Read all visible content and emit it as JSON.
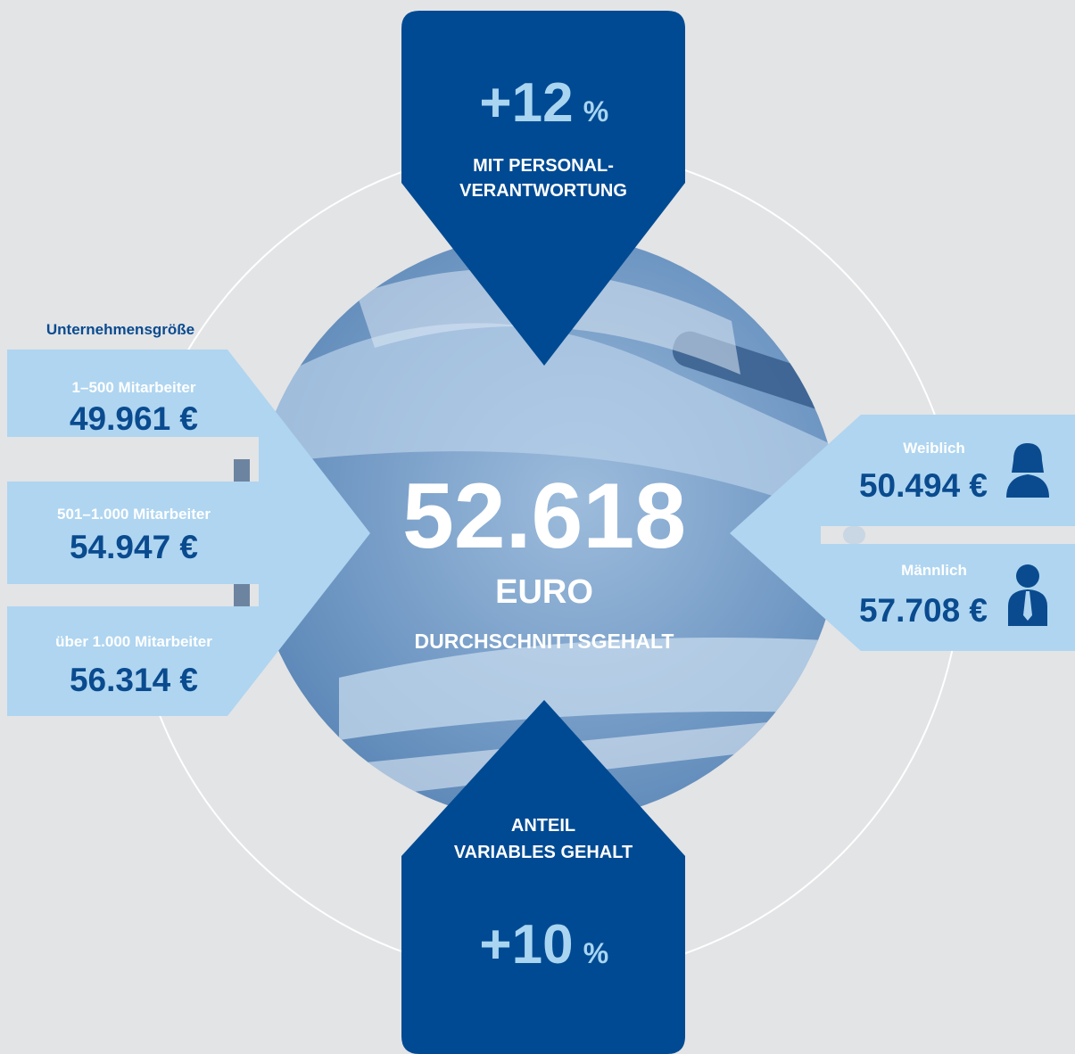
{
  "top": {
    "value": "+12",
    "unit": "%",
    "lines": [
      "MIT PERSONAL-",
      "VERANTWORTUNG"
    ]
  },
  "center": {
    "value": "52.618",
    "unit": "EURO",
    "caption": "DURCHSCHNITTSGEHALT"
  },
  "company_size": {
    "title": "Unternehmensgröße",
    "items": [
      {
        "label": "1–500 Mitarbeiter",
        "value": "49.961 €"
      },
      {
        "label": "501–1.000 Mitarbeiter",
        "value": "54.947 €"
      },
      {
        "label": "über 1.000 Mitarbeiter",
        "value": "56.314 €"
      }
    ]
  },
  "gender": {
    "items": [
      {
        "label": "Weiblich",
        "value": "50.494 €"
      },
      {
        "label": "Männlich",
        "value": "57.708 €"
      }
    ]
  },
  "bottom": {
    "lines": [
      "ANTEIL",
      "VARIABLES GEHALT"
    ],
    "value": "+10",
    "unit": "%"
  }
}
